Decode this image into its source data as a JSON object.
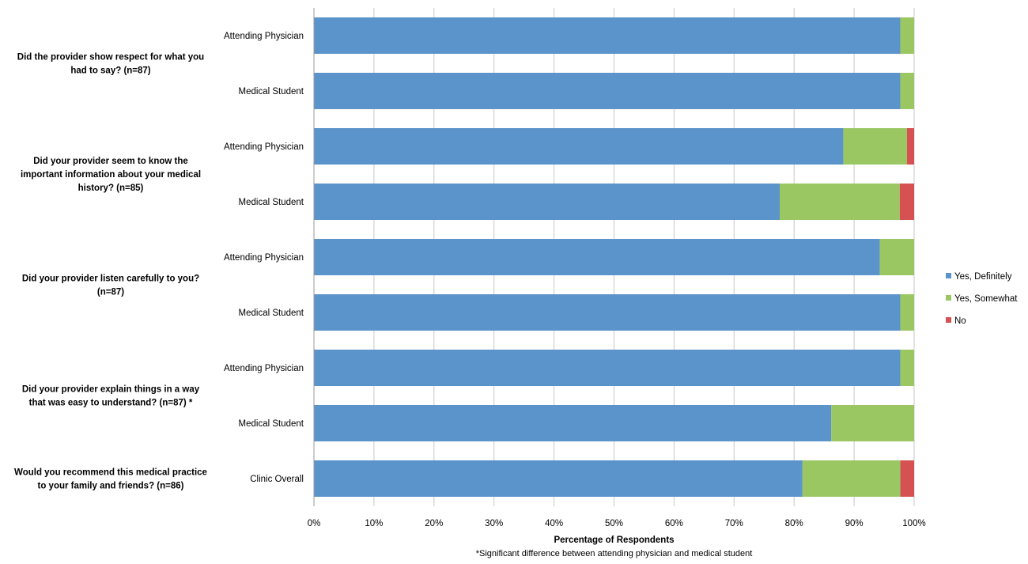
{
  "chart_data": {
    "type": "bar",
    "orientation": "horizontal",
    "stacked": true,
    "xlabel": "Percentage of Respondents",
    "footnote": "*Significant difference between attending physician and medical student",
    "xlim": [
      0,
      100
    ],
    "x_ticks": [
      "0%",
      "10%",
      "20%",
      "30%",
      "40%",
      "50%",
      "60%",
      "70%",
      "80%",
      "90%",
      "100%"
    ],
    "grid": "vertical",
    "legend_position": "right",
    "groups": [
      {
        "question": [
          "Did the provider show respect for what you",
          "had to say? (n=87)"
        ],
        "bars": [
          0,
          1
        ]
      },
      {
        "question": [
          "Did your provider seem to know the",
          "important information about your medical",
          "history? (n=85)"
        ],
        "bars": [
          2,
          3
        ]
      },
      {
        "question": [
          "Did your provider listen carefully to you?",
          "(n=87)"
        ],
        "bars": [
          4,
          5
        ]
      },
      {
        "question": [
          "Did your provider explain things in a way",
          "that was easy to understand? (n=87) *"
        ],
        "bars": [
          6,
          7
        ]
      },
      {
        "question": [
          "Would you recommend this medical practice",
          "to your family and friends? (n=86)"
        ],
        "bars": [
          8
        ]
      }
    ],
    "categories": [
      "Attending Physician",
      "Medical Student",
      "Attending Physician",
      "Medical Student",
      "Attending Physician",
      "Medical Student",
      "Attending Physician",
      "Medical Student",
      "Clinic Overall"
    ],
    "series": [
      {
        "name": "Yes, Definitely",
        "color": "#5b93cb",
        "values": [
          97.7,
          97.7,
          88.2,
          77.6,
          94.3,
          97.7,
          97.7,
          86.2,
          81.4
        ]
      },
      {
        "name": "Yes, Somewhat",
        "color": "#9bc763",
        "values": [
          2.3,
          2.3,
          10.6,
          20.0,
          5.7,
          2.3,
          2.3,
          13.8,
          16.3
        ]
      },
      {
        "name": "No",
        "color": "#d65252",
        "values": [
          0.0,
          0.0,
          1.2,
          2.4,
          0.0,
          0.0,
          0.0,
          0.0,
          2.3
        ]
      }
    ]
  }
}
